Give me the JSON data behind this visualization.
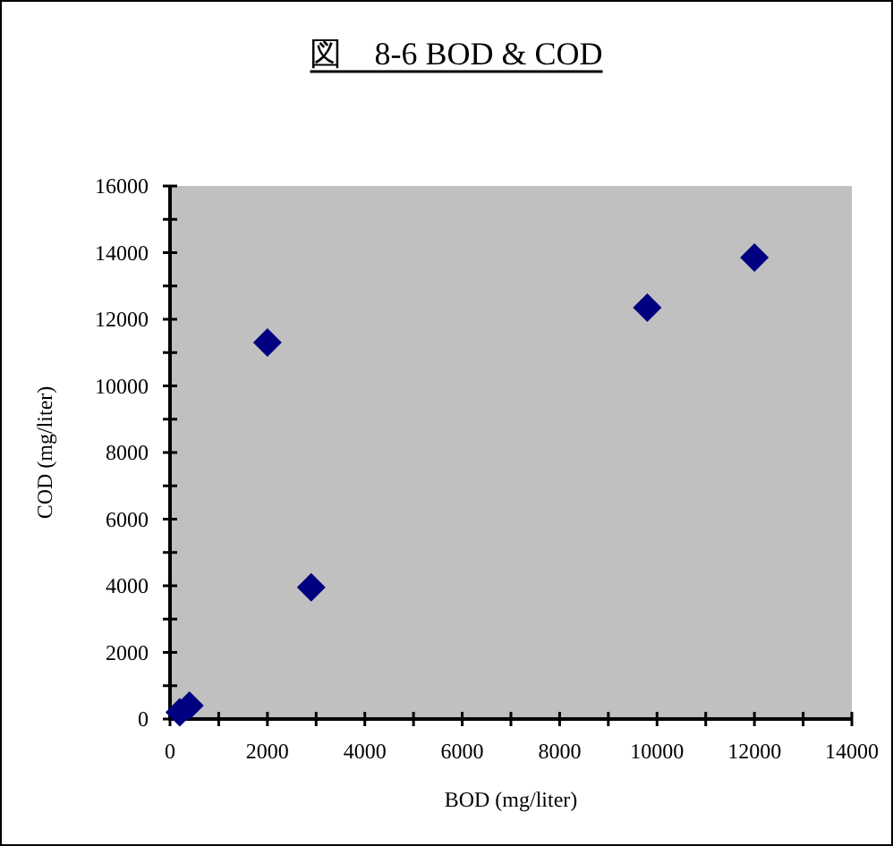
{
  "chart_data": {
    "type": "scatter",
    "title": "図　8-6  BOD & COD",
    "xlabel": "BOD (mg/liter)",
    "ylabel": "COD (mg/liter)",
    "x": [
      200,
      400,
      2000,
      2900,
      9800,
      12000
    ],
    "series": [
      {
        "color": "#000080",
        "values": [
          200,
          400,
          11300,
          3950,
          12350,
          13850
        ]
      }
    ],
    "xlim": [
      0,
      14000
    ],
    "ylim": [
      0,
      16000
    ],
    "xticks": [
      0,
      {
        "value": 1000,
        "label": null
      },
      2000,
      {
        "value": 3000,
        "label": null
      },
      4000,
      {
        "value": 5000,
        "label": null
      },
      6000,
      {
        "value": 7000,
        "label": null
      },
      8000,
      {
        "value": 9000,
        "label": null
      },
      10000,
      {
        "value": 11000,
        "label": null
      },
      12000,
      {
        "value": 13000,
        "label": null
      },
      14000
    ],
    "yticks": [
      0,
      {
        "value": 1000,
        "label": null
      },
      2000,
      {
        "value": 3000,
        "label": null
      },
      4000,
      {
        "value": 5000,
        "label": null
      },
      6000,
      {
        "value": 7000,
        "label": null
      },
      8000,
      {
        "value": 9000,
        "label": null
      },
      10000,
      {
        "value": 11000,
        "label": null
      },
      12000,
      {
        "value": 13000,
        "label": null
      },
      14000,
      {
        "value": 15000,
        "label": null
      },
      16000
    ],
    "grid": false,
    "marker": "diamond"
  }
}
